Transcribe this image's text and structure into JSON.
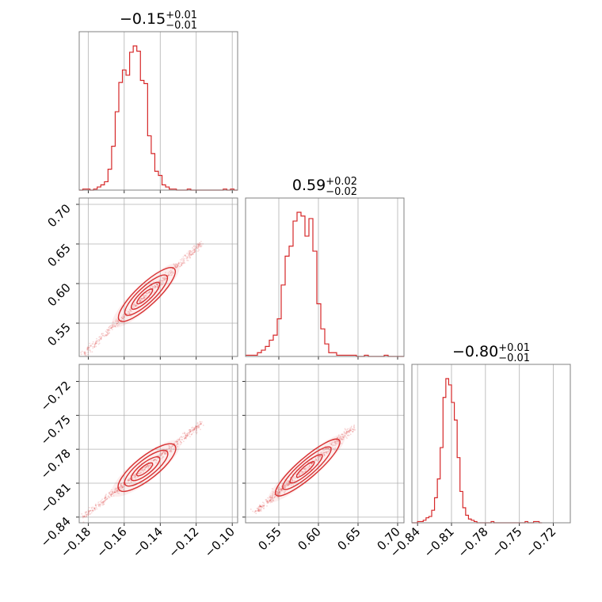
{
  "chart_data": {
    "type": "corner",
    "color": "#d62728",
    "grid": true,
    "parameters": [
      {
        "title": {
          "median": "−0.15",
          "upper": "+0.01",
          "lower": "−0.01"
        },
        "range": [
          -0.185,
          -0.097
        ],
        "ticks": [
          {
            "value": -0.18,
            "label": "−0.18"
          },
          {
            "value": -0.16,
            "label": "−0.16"
          },
          {
            "value": -0.14,
            "label": "−0.14"
          },
          {
            "value": -0.12,
            "label": "−0.12"
          },
          {
            "value": -0.1,
            "label": "−0.10"
          }
        ],
        "histogram": {
          "edges_start": -0.185,
          "bin_width": 0.002,
          "counts": [
            0,
            1,
            1,
            0,
            1,
            3,
            5,
            8,
            20,
            42,
            75,
            103,
            115,
            110,
            132,
            138,
            133,
            105,
            102,
            52,
            35,
            18,
            14,
            5,
            3,
            1,
            1,
            0,
            0,
            0,
            1,
            0,
            0,
            0,
            0,
            0,
            0,
            0,
            0,
            0,
            1,
            0,
            1,
            0
          ]
        }
      },
      {
        "title": {
          "median": "0.59",
          "upper": "+0.02",
          "lower": "−0.02"
        },
        "range": [
          0.508,
          0.708
        ],
        "ticks": [
          {
            "value": 0.55,
            "label": "0.55"
          },
          {
            "value": 0.6,
            "label": "0.60"
          },
          {
            "value": 0.65,
            "label": "0.65"
          },
          {
            "value": 0.7,
            "label": "0.70"
          }
        ],
        "histogram": {
          "edges_start": 0.508,
          "bin_width": 0.005,
          "counts": [
            1,
            1,
            1,
            3,
            5,
            8,
            13,
            17,
            30,
            57,
            80,
            88,
            108,
            115,
            112,
            96,
            110,
            84,
            42,
            22,
            10,
            3,
            3,
            1,
            1,
            1,
            1,
            1,
            0,
            0,
            1,
            0,
            0,
            0,
            0,
            1,
            0,
            0,
            0,
            0
          ]
        }
      },
      {
        "title": {
          "median": "−0.80",
          "upper": "+0.01",
          "lower": "−0.01"
        },
        "range": [
          -0.845,
          -0.705
        ],
        "ticks": [
          {
            "value": -0.84,
            "label": "−0.84"
          },
          {
            "value": -0.81,
            "label": "−0.81"
          },
          {
            "value": -0.78,
            "label": "−0.78"
          },
          {
            "value": -0.75,
            "label": "−0.75"
          },
          {
            "value": -0.72,
            "label": "−0.72"
          }
        ],
        "histogram": {
          "edges_start": -0.845,
          "bin_width": 0.0025,
          "counts": [
            0,
            0,
            1,
            1,
            2,
            4,
            5,
            10,
            20,
            35,
            60,
            100,
            115,
            110,
            96,
            82,
            52,
            25,
            12,
            6,
            3,
            2,
            1,
            0,
            0,
            0,
            0,
            0,
            1,
            0,
            0,
            0,
            0,
            0,
            0,
            0,
            0,
            0,
            0,
            0,
            1,
            0,
            0,
            1,
            1,
            0
          ]
        }
      }
    ],
    "pairs": [
      {
        "x_param": 0,
        "y_param": 1,
        "center": [
          -0.148,
          0.585
        ],
        "sx": 0.006,
        "sy": 0.0195,
        "rho": 0.97,
        "scatter_from": [
          -0.183,
          0.51
        ],
        "scatter_to": [
          -0.117,
          0.651
        ]
      },
      {
        "x_param": 0,
        "y_param": 2,
        "center": [
          -0.148,
          -0.797
        ],
        "sx": 0.006,
        "sy": 0.0125,
        "rho": 0.96,
        "scatter_from": [
          -0.183,
          -0.84
        ],
        "scatter_to": [
          -0.117,
          -0.757
        ]
      },
      {
        "x_param": 1,
        "y_param": 2,
        "center": [
          0.585,
          -0.797
        ],
        "sx": 0.0195,
        "sy": 0.0125,
        "rho": 0.98,
        "scatter_from": [
          0.52,
          -0.836
        ],
        "scatter_to": [
          0.645,
          -0.76
        ]
      }
    ]
  }
}
